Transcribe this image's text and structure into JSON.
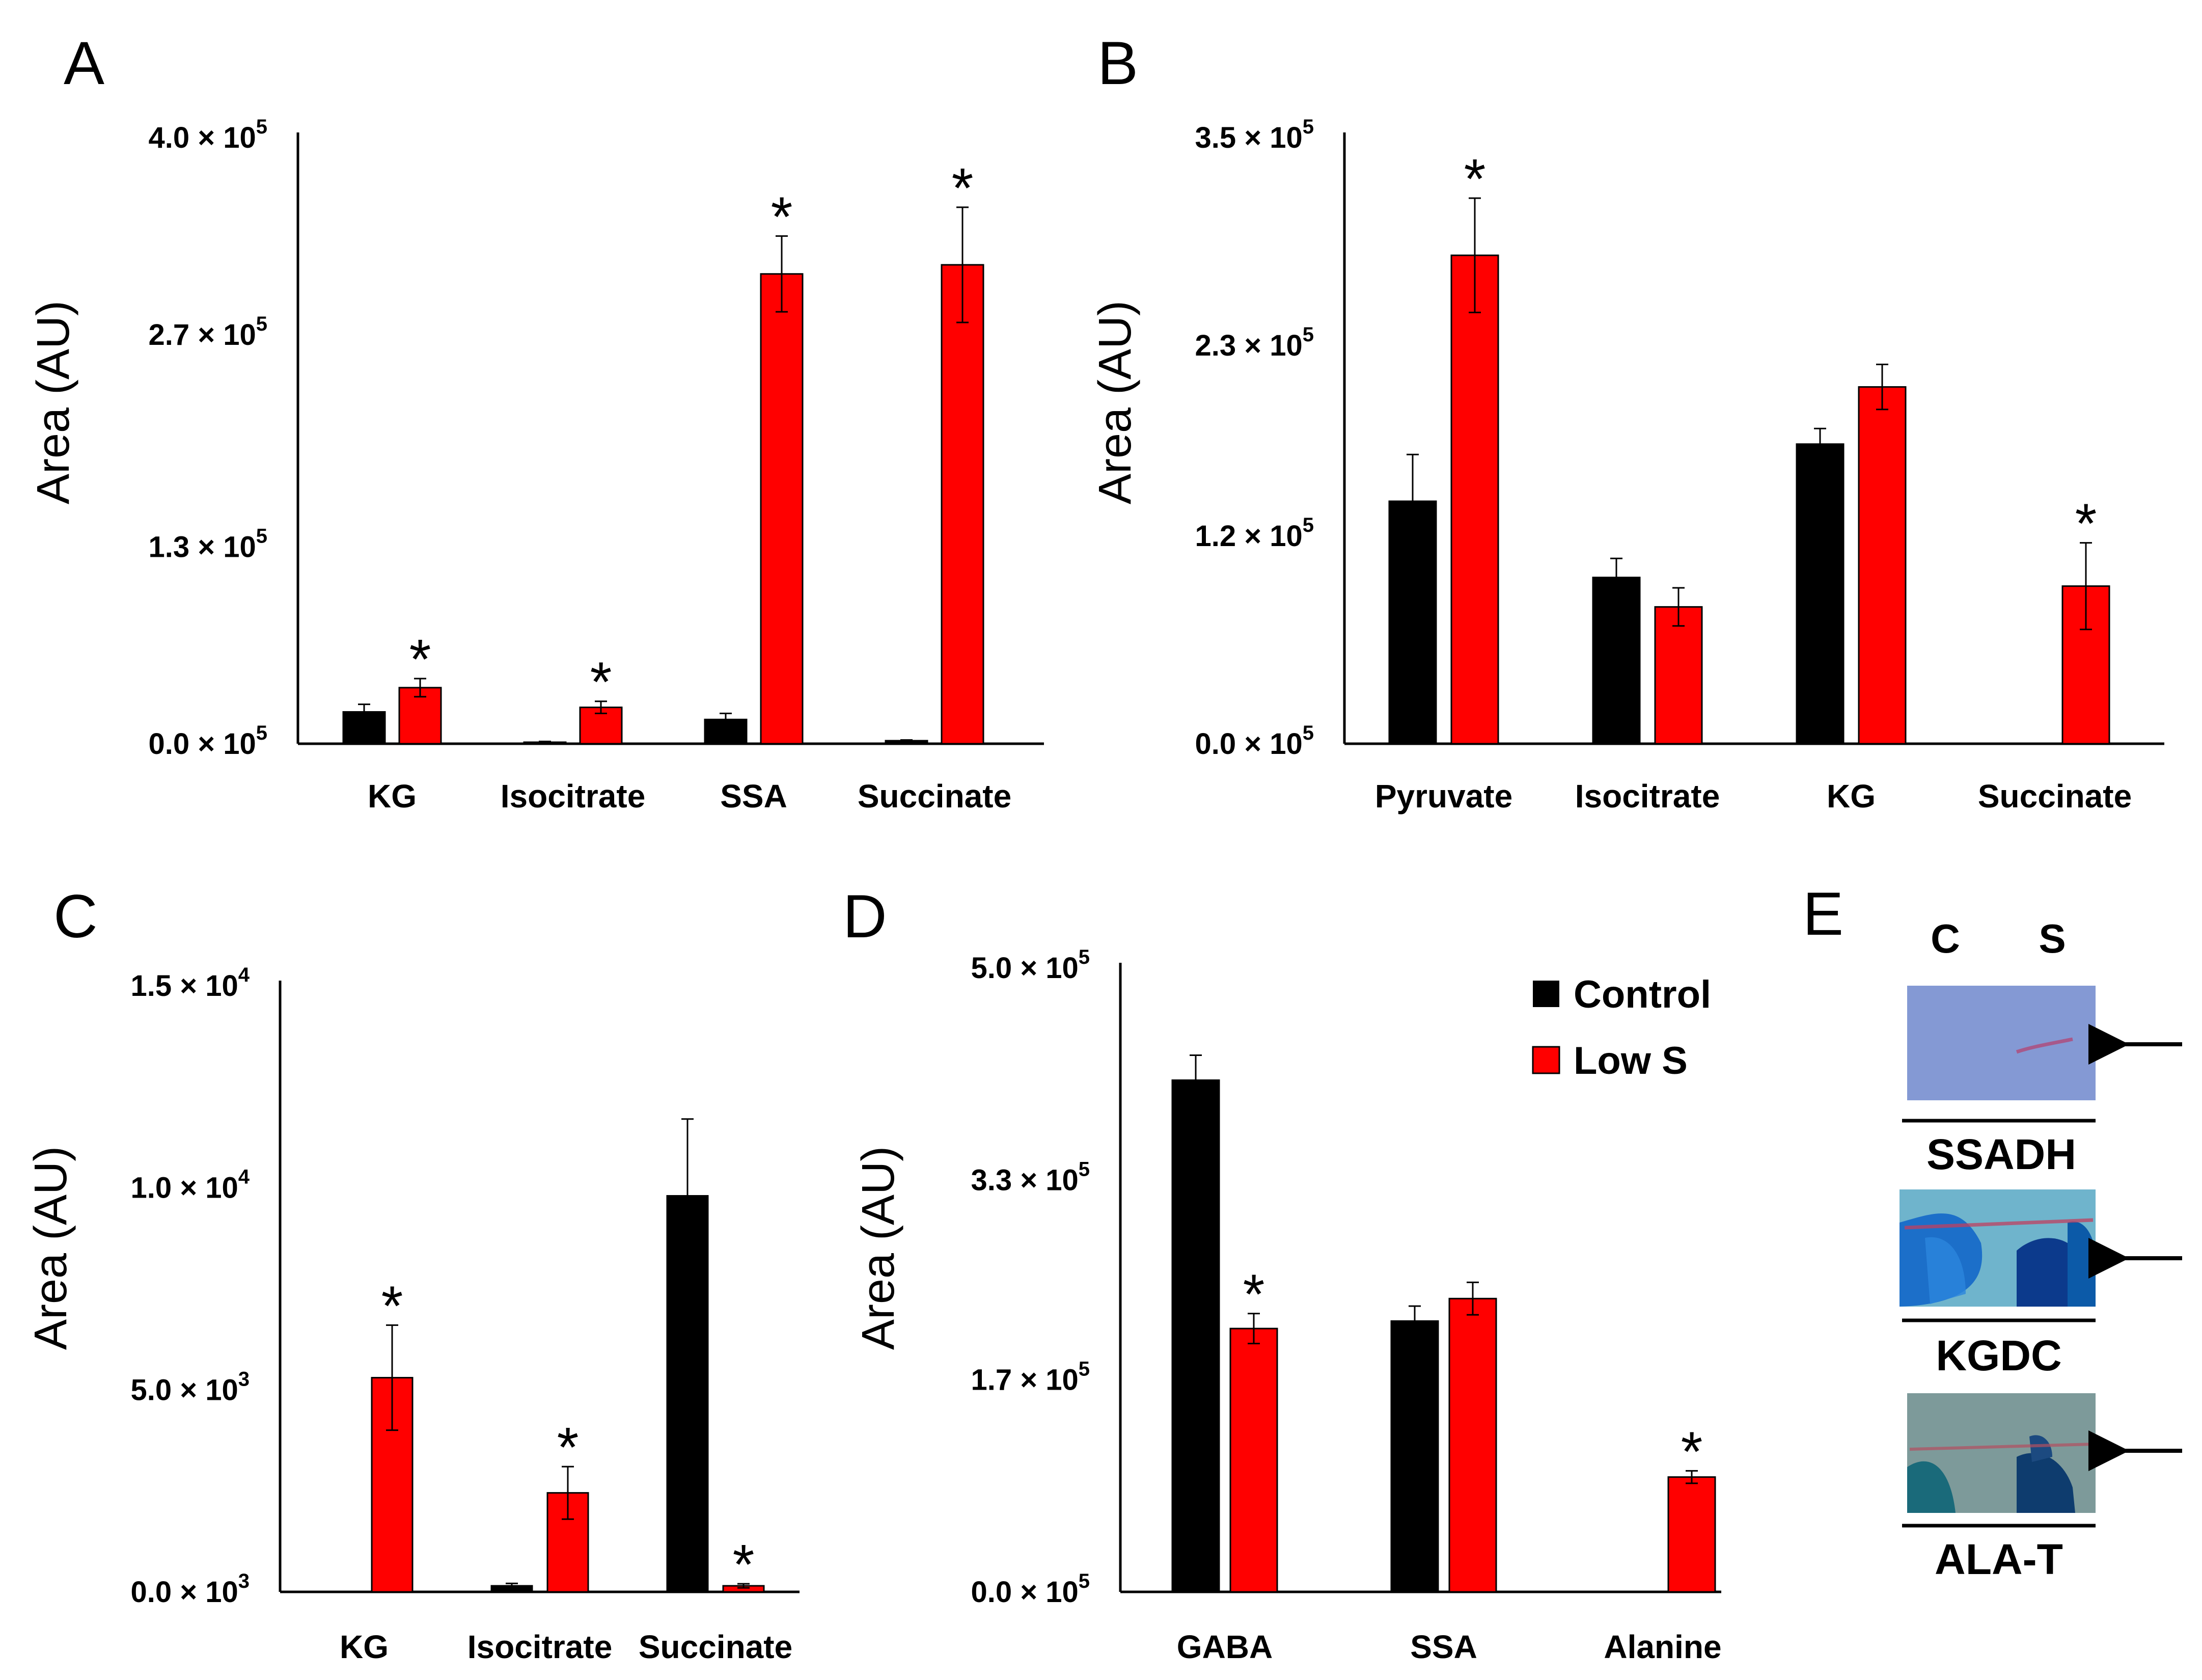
{
  "colors": {
    "control": "#000000",
    "low_s": "#ff0000",
    "axis": "#000000"
  },
  "legend": {
    "control_label": "Control",
    "low_s_label": "Low S"
  },
  "y_axis_label": "Area (AU)",
  "chart_data": [
    {
      "panel": "A",
      "type": "bar",
      "ylabel": "Area (AU)",
      "ylim": [
        0,
        400000
      ],
      "yticks": [
        {
          "value": 0,
          "mantissa": "0.0",
          "exp": "5"
        },
        {
          "value": 130000,
          "mantissa": "1.3",
          "exp": "5"
        },
        {
          "value": 270000,
          "mantissa": "2.7",
          "exp": "5"
        },
        {
          "value": 400000,
          "mantissa": "4.0",
          "exp": "5"
        }
      ],
      "categories": [
        "KG",
        "Isocitrate",
        "SSA",
        "Succinate"
      ],
      "series": [
        {
          "name": "Control",
          "values": [
            21000,
            1000,
            16000,
            2000
          ],
          "errors": [
            5000,
            500,
            4000,
            500
          ]
        },
        {
          "name": "Low S",
          "values": [
            37000,
            24000,
            310000,
            316000
          ],
          "errors": [
            6000,
            4000,
            25000,
            38000
          ]
        }
      ],
      "significance": [
        true,
        true,
        true,
        true
      ]
    },
    {
      "panel": "B",
      "type": "bar",
      "ylabel": "Area (AU)",
      "ylim": [
        0,
        350000
      ],
      "yticks": [
        {
          "value": 0,
          "mantissa": "0.0",
          "exp": "5"
        },
        {
          "value": 120000,
          "mantissa": "1.2",
          "exp": "5"
        },
        {
          "value": 230000,
          "mantissa": "2.3",
          "exp": "5"
        },
        {
          "value": 350000,
          "mantissa": "3.5",
          "exp": "5"
        }
      ],
      "categories": [
        "Pyruvate",
        "Isocitrate",
        "KG",
        "Succinate"
      ],
      "series": [
        {
          "name": "Control",
          "values": [
            140000,
            96000,
            173000,
            0
          ],
          "errors": [
            27000,
            11000,
            9000,
            0
          ]
        },
        {
          "name": "Low S",
          "values": [
            282000,
            79000,
            206000,
            91000
          ],
          "errors": [
            33000,
            11000,
            13000,
            25000
          ]
        }
      ],
      "significance": [
        true,
        false,
        false,
        true
      ]
    },
    {
      "panel": "C",
      "type": "bar",
      "ylabel": "Area (AU)",
      "ylim": [
        0,
        15000
      ],
      "yticks": [
        {
          "value": 0,
          "mantissa": "0.0",
          "exp": "3"
        },
        {
          "value": 5000,
          "mantissa": "5.0",
          "exp": "3"
        },
        {
          "value": 10000,
          "mantissa": "1.0",
          "exp": "4"
        },
        {
          "value": 15000,
          "mantissa": "1.5",
          "exp": "4"
        }
      ],
      "categories": [
        "KG",
        "Isocitrate",
        "Succinate"
      ],
      "series": [
        {
          "name": "Control",
          "values": [
            0,
            150,
            9800
          ],
          "errors": [
            0,
            60,
            1900
          ]
        },
        {
          "name": "Low S",
          "values": [
            5300,
            2450,
            150
          ],
          "errors": [
            1300,
            650,
            50
          ]
        }
      ],
      "significance": [
        true,
        true,
        true
      ]
    },
    {
      "panel": "D",
      "type": "bar",
      "ylabel": "Area (AU)",
      "ylim": [
        0,
        500000
      ],
      "yticks": [
        {
          "value": 0,
          "mantissa": "0.0",
          "exp": "5"
        },
        {
          "value": 170000,
          "mantissa": "1.7",
          "exp": "5"
        },
        {
          "value": 330000,
          "mantissa": "3.3",
          "exp": "5"
        },
        {
          "value": 500000,
          "mantissa": "5.0",
          "exp": "5"
        }
      ],
      "categories": [
        "GABA",
        "SSA",
        "Alanine"
      ],
      "series": [
        {
          "name": "Control",
          "values": [
            410000,
            217000,
            0
          ],
          "errors": [
            20000,
            12000,
            0
          ]
        },
        {
          "name": "Low S",
          "values": [
            211000,
            235000,
            92000
          ],
          "errors": [
            12000,
            13000,
            5000
          ]
        }
      ],
      "significance": [
        true,
        false,
        true
      ]
    }
  ],
  "panel_e": {
    "letter": "E",
    "lanes": [
      "C",
      "S"
    ],
    "blots": [
      {
        "label": "SSADH"
      },
      {
        "label": "KGDC"
      },
      {
        "label": "ALA-T"
      }
    ]
  }
}
